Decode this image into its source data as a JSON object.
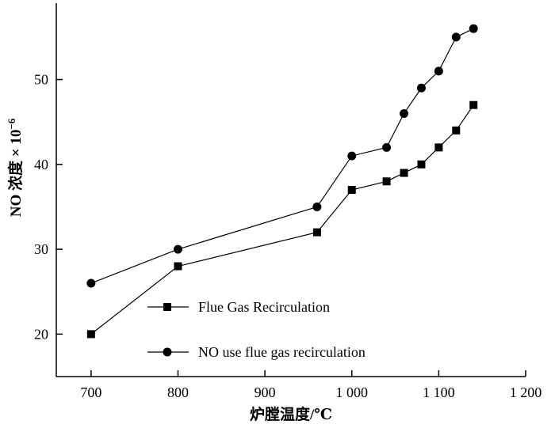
{
  "chart_data": {
    "type": "line",
    "title": "",
    "xlabel": "炉膛温度/℃",
    "ylabel": "NO 浓度 × 10",
    "ylabel_exponent": "−6",
    "xlim": [
      660,
      1200
    ],
    "ylim": [
      15,
      59
    ],
    "x_ticks": [
      700,
      800,
      900,
      1000,
      1100,
      1200
    ],
    "x_tick_labels": [
      "700",
      "800",
      "900",
      "1 000",
      "1 100",
      "1 200"
    ],
    "y_ticks": [
      20,
      30,
      40,
      50
    ],
    "y_tick_labels": [
      "20",
      "30",
      "40",
      "50"
    ],
    "grid": false,
    "legend_position": "lower-center",
    "series": [
      {
        "name": "Flue Gas Recirculation",
        "marker": "square",
        "color": "#000000",
        "x": [
          700,
          800,
          960,
          1000,
          1040,
          1060,
          1080,
          1100,
          1120,
          1140
        ],
        "y": [
          20,
          28,
          32,
          37,
          38,
          39,
          40,
          42,
          44,
          47
        ]
      },
      {
        "name": "NO use flue gas recirculation",
        "marker": "circle",
        "color": "#000000",
        "x": [
          700,
          800,
          960,
          1000,
          1040,
          1060,
          1080,
          1100,
          1120,
          1140
        ],
        "y": [
          26,
          30,
          35,
          41,
          42,
          46,
          49,
          51,
          55,
          56
        ]
      }
    ]
  }
}
